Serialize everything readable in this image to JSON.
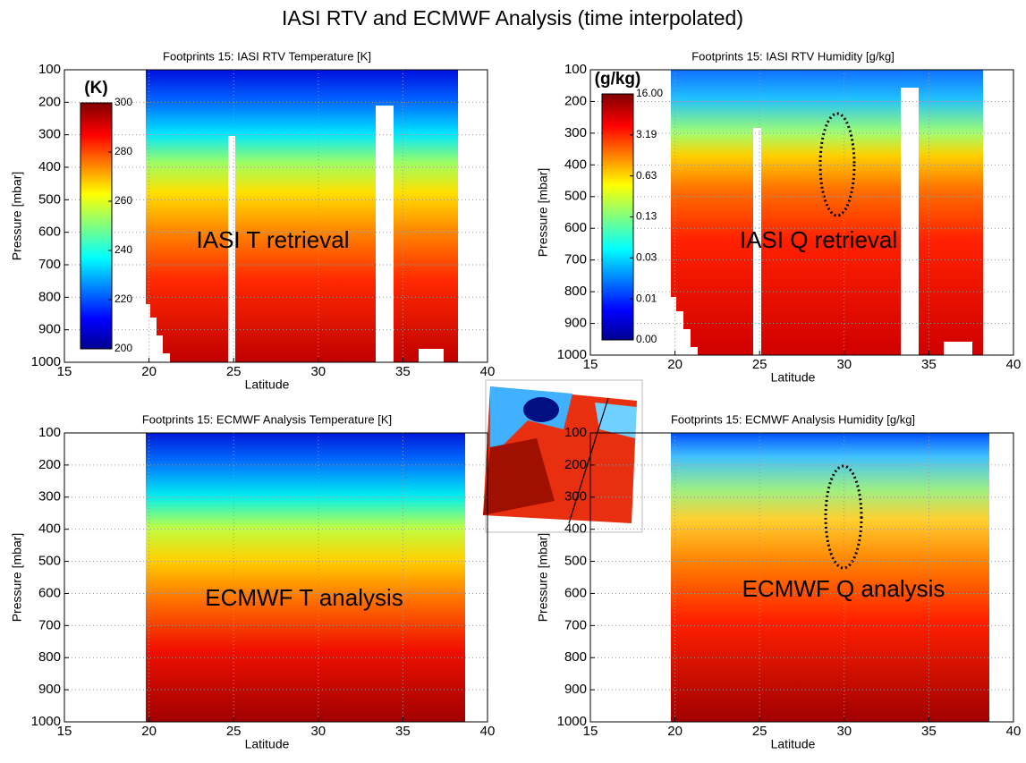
{
  "title": "IASI RTV and ECMWF Analysis (time interpolated)",
  "chart_data": [
    {
      "type": "heatmap",
      "title": "Footprints 15: IASI RTV Temperature [K]",
      "xlabel": "Latitude",
      "ylabel": "Pressure [mbar]",
      "xlim": [
        15,
        40
      ],
      "xticks": [
        15,
        20,
        25,
        30,
        35,
        40
      ],
      "ylim": [
        1000,
        100
      ],
      "yticks": [
        100,
        200,
        300,
        400,
        500,
        600,
        700,
        800,
        900,
        1000
      ],
      "annotation": "IASI T retrieval",
      "colorbar": {
        "label": "(K)",
        "clim": [
          200,
          300
        ],
        "ticks": [
          200,
          220,
          240,
          260,
          280,
          300
        ]
      }
    },
    {
      "type": "heatmap",
      "title": "Footprints 15: IASI RTV Humidity [g/kg]",
      "xlabel": "Latitude",
      "ylabel": "Pressure [mbar]",
      "xlim": [
        15,
        40
      ],
      "xticks": [
        15,
        20,
        25,
        30,
        35,
        40
      ],
      "ylim": [
        1000,
        100
      ],
      "yticks": [
        100,
        200,
        300,
        400,
        500,
        600,
        700,
        800,
        900,
        1000
      ],
      "annotation": "IASI Q retrieval",
      "colorbar": {
        "label": "(g/kg)",
        "ticks": [
          {
            "value": 0,
            "label": "0.00"
          },
          {
            "value": 0.01,
            "label": "0.01"
          },
          {
            "value": 0.03,
            "label": "0.03"
          },
          {
            "value": 0.13,
            "label": "0.13"
          },
          {
            "value": 0.63,
            "label": "0.63"
          },
          {
            "value": 3.19,
            "label": "3.19"
          },
          {
            "value": 16,
            "label": "16.00"
          }
        ]
      }
    },
    {
      "type": "heatmap",
      "title": "Footprints 15: ECMWF Analysis Temperature [K]",
      "xlabel": "Latitude",
      "ylabel": "Pressure [mbar]",
      "xlim": [
        15,
        40
      ],
      "xticks": [
        15,
        20,
        25,
        30,
        35,
        40
      ],
      "ylim": [
        1000,
        100
      ],
      "yticks": [
        100,
        200,
        300,
        400,
        500,
        600,
        700,
        800,
        900,
        1000
      ],
      "annotation": "ECMWF T analysis"
    },
    {
      "type": "heatmap",
      "title": "Footprints 15: ECMWF Analysis Humidity [g/kg]",
      "xlabel": "Latitude",
      "ylabel": "Pressure [mbar]",
      "xlim": [
        15,
        40
      ],
      "xticks": [
        15,
        20,
        25,
        30,
        35,
        40
      ],
      "ylim": [
        1000,
        100
      ],
      "yticks": [
        100,
        200,
        300,
        400,
        500,
        600,
        700,
        800,
        900,
        1000
      ],
      "annotation": "ECMWF Q analysis"
    }
  ]
}
